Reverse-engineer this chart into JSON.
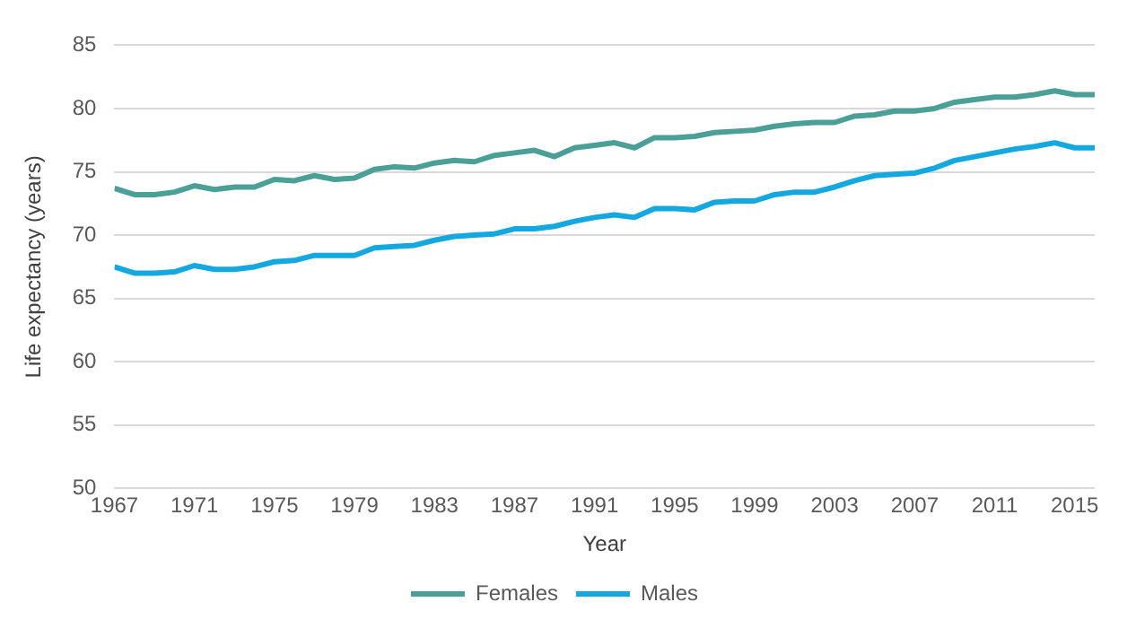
{
  "chart_data": {
    "type": "line",
    "xlabel": "Year",
    "ylabel": "Life expectancy (years)",
    "x": [
      1967,
      1968,
      1969,
      1970,
      1971,
      1972,
      1973,
      1974,
      1975,
      1976,
      1977,
      1978,
      1979,
      1980,
      1981,
      1982,
      1983,
      1984,
      1985,
      1986,
      1987,
      1988,
      1989,
      1990,
      1991,
      1992,
      1993,
      1994,
      1995,
      1996,
      1997,
      1998,
      1999,
      2000,
      2001,
      2002,
      2003,
      2004,
      2005,
      2006,
      2007,
      2008,
      2009,
      2010,
      2011,
      2012,
      2013,
      2014,
      2015,
      2016
    ],
    "series": [
      {
        "name": "Females",
        "color": "#4a9f97",
        "values": [
          73.7,
          73.2,
          73.2,
          73.4,
          73.9,
          73.6,
          73.8,
          73.8,
          74.4,
          74.3,
          74.7,
          74.4,
          74.5,
          75.2,
          75.4,
          75.3,
          75.7,
          75.9,
          75.8,
          76.3,
          76.5,
          76.7,
          76.2,
          76.9,
          77.1,
          77.3,
          76.9,
          77.7,
          77.7,
          77.8,
          78.1,
          78.2,
          78.3,
          78.6,
          78.8,
          78.9,
          78.9,
          79.4,
          79.5,
          79.8,
          79.8,
          80.0,
          80.5,
          80.7,
          80.9,
          80.9,
          81.1,
          81.4,
          81.1,
          81.1
        ]
      },
      {
        "name": "Males",
        "color": "#14a8e0",
        "values": [
          67.5,
          67.0,
          67.0,
          67.1,
          67.6,
          67.3,
          67.3,
          67.5,
          67.9,
          68.0,
          68.4,
          68.4,
          68.4,
          69.0,
          69.1,
          69.2,
          69.6,
          69.9,
          70.0,
          70.1,
          70.5,
          70.5,
          70.7,
          71.1,
          71.4,
          71.6,
          71.4,
          72.1,
          72.1,
          72.0,
          72.6,
          72.7,
          72.7,
          73.2,
          73.4,
          73.4,
          73.8,
          74.3,
          74.7,
          74.8,
          74.9,
          75.3,
          75.9,
          76.2,
          76.5,
          76.8,
          77.0,
          77.3,
          76.9,
          76.9
        ]
      }
    ],
    "xlim": [
      1967,
      2016
    ],
    "xticks": [
      1967,
      1971,
      1975,
      1979,
      1983,
      1987,
      1991,
      1995,
      1999,
      2003,
      2007,
      2011,
      2015
    ],
    "ylim": [
      50,
      85
    ],
    "yticks": [
      50,
      55,
      60,
      65,
      70,
      75,
      80,
      85
    ],
    "grid": "y",
    "legend": "bottom",
    "marker": "none",
    "line_style": "solid"
  }
}
